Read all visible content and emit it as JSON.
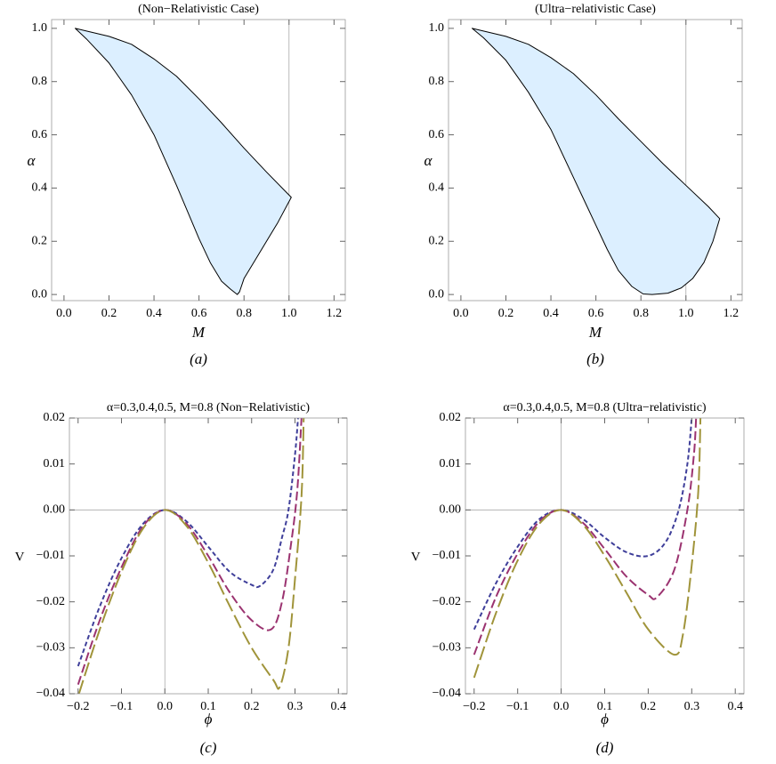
{
  "chart_data": [
    {
      "type": "area",
      "title": "(Non−Relativistic Case)",
      "xlabel": "M",
      "ylabel": "α",
      "panel_label": "(a)",
      "xlim": [
        -0.055,
        1.25
      ],
      "ylim": [
        -0.023,
        1.033
      ],
      "xticks": [
        {
          "value": 0,
          "label": "0.0"
        },
        {
          "value": 0.2,
          "label": "0.2"
        },
        {
          "value": 0.4,
          "label": "0.4"
        },
        {
          "value": 0.6,
          "label": "0.6"
        },
        {
          "value": 0.8,
          "label": "0.8"
        },
        {
          "value": 1,
          "label": "1.0"
        },
        {
          "value": 1.2,
          "label": "1.2"
        }
      ],
      "yticks": [
        {
          "value": 0,
          "label": "0.0"
        },
        {
          "value": 0.2,
          "label": "0.2"
        },
        {
          "value": 0.4,
          "label": "0.4"
        },
        {
          "value": 0.6,
          "label": "0.6"
        },
        {
          "value": 0.8,
          "label": "0.8"
        },
        {
          "value": 1,
          "label": "1.0"
        }
      ],
      "vlines": [
        1
      ],
      "color": "#dcefff",
      "x": [
        0.05,
        0.1,
        0.2,
        0.3,
        0.4,
        0.5,
        0.6,
        0.7,
        0.8,
        0.9,
        1.01,
        0.95,
        0.9,
        0.85,
        0.8,
        0.78,
        0.77,
        0.74,
        0.7,
        0.65,
        0.6,
        0.55,
        0.5,
        0.4,
        0.3,
        0.2,
        0.1
      ],
      "y": [
        1.0,
        0.99,
        0.97,
        0.94,
        0.885,
        0.82,
        0.735,
        0.645,
        0.55,
        0.46,
        0.365,
        0.27,
        0.2,
        0.13,
        0.06,
        0.01,
        0.0,
        0.02,
        0.05,
        0.12,
        0.21,
        0.31,
        0.41,
        0.6,
        0.75,
        0.87,
        0.96
      ]
    },
    {
      "type": "area",
      "title": "(Ultra−relativistic Case)",
      "xlabel": "M",
      "ylabel": "α",
      "panel_label": "(b)",
      "xlim": [
        -0.055,
        1.25
      ],
      "ylim": [
        -0.023,
        1.033
      ],
      "xticks": [
        {
          "value": 0,
          "label": "0.0"
        },
        {
          "value": 0.2,
          "label": "0.2"
        },
        {
          "value": 0.4,
          "label": "0.4"
        },
        {
          "value": 0.6,
          "label": "0.6"
        },
        {
          "value": 0.8,
          "label": "0.8"
        },
        {
          "value": 1,
          "label": "1.0"
        },
        {
          "value": 1.2,
          "label": "1.2"
        }
      ],
      "yticks": [
        {
          "value": 0,
          "label": "0.0"
        },
        {
          "value": 0.2,
          "label": "0.2"
        },
        {
          "value": 0.4,
          "label": "0.4"
        },
        {
          "value": 0.6,
          "label": "0.6"
        },
        {
          "value": 0.8,
          "label": "0.8"
        },
        {
          "value": 1,
          "label": "1.0"
        }
      ],
      "vlines": [
        1
      ],
      "color": "#dcefff",
      "x": [
        0.05,
        0.1,
        0.2,
        0.3,
        0.4,
        0.5,
        0.6,
        0.7,
        0.8,
        0.9,
        1.0,
        1.1,
        1.15,
        1.12,
        1.08,
        1.03,
        0.98,
        0.92,
        0.85,
        0.81,
        0.76,
        0.7,
        0.65,
        0.6,
        0.55,
        0.5,
        0.4,
        0.3,
        0.2,
        0.1
      ],
      "y": [
        1.0,
        0.99,
        0.97,
        0.94,
        0.89,
        0.83,
        0.75,
        0.66,
        0.575,
        0.49,
        0.41,
        0.33,
        0.285,
        0.2,
        0.12,
        0.06,
        0.025,
        0.005,
        0.0,
        0.002,
        0.03,
        0.09,
        0.17,
        0.26,
        0.35,
        0.44,
        0.62,
        0.76,
        0.88,
        0.965
      ]
    },
    {
      "type": "line",
      "title": "α=0.3,0.4,0.5, M=0.8 (Non−Relativistic)",
      "xlabel": "ϕ",
      "ylabel": "V",
      "panel_label": "(c)",
      "xlim": [
        -0.22,
        0.42
      ],
      "ylim": [
        -0.04,
        0.02
      ],
      "xticks": [
        {
          "value": -0.2,
          "label": "−0.2"
        },
        {
          "value": -0.1,
          "label": "−0.1"
        },
        {
          "value": 0,
          "label": "0.0"
        },
        {
          "value": 0.1,
          "label": "0.1"
        },
        {
          "value": 0.2,
          "label": "0.2"
        },
        {
          "value": 0.3,
          "label": "0.3"
        },
        {
          "value": 0.4,
          "label": "0.4"
        }
      ],
      "yticks": [
        {
          "value": -0.04,
          "label": "−0.04"
        },
        {
          "value": -0.03,
          "label": "−0.03"
        },
        {
          "value": -0.02,
          "label": "−0.02"
        },
        {
          "value": -0.01,
          "label": "−0.01"
        },
        {
          "value": 0,
          "label": "0.00"
        },
        {
          "value": 0.01,
          "label": "0.01"
        },
        {
          "value": 0.02,
          "label": "0.02"
        }
      ],
      "vlines": [
        0
      ],
      "hlines": [
        0
      ],
      "series": [
        {
          "color": "#3f3f9a",
          "dash": "5,3",
          "x": [
            -0.2,
            -0.15,
            -0.1,
            -0.05,
            0,
            0.05,
            0.1,
            0.15,
            0.2,
            0.22,
            0.25,
            0.27,
            0.285,
            0.3,
            0.307
          ],
          "values": [
            -0.034,
            -0.021,
            -0.0105,
            -0.003,
            0,
            -0.0025,
            -0.008,
            -0.0135,
            -0.0163,
            -0.0165,
            -0.013,
            -0.006,
            0.0,
            0.012,
            0.02
          ]
        },
        {
          "color": "#9b3370",
          "dash": "10,4",
          "x": [
            -0.2,
            -0.15,
            -0.1,
            -0.05,
            0,
            0.05,
            0.1,
            0.15,
            0.2,
            0.245,
            0.27,
            0.29,
            0.305,
            0.315
          ],
          "values": [
            -0.038,
            -0.024,
            -0.0125,
            -0.0035,
            0,
            -0.003,
            -0.01,
            -0.018,
            -0.024,
            -0.026,
            -0.02,
            -0.008,
            0.004,
            0.02
          ]
        },
        {
          "color": "#a0943a",
          "dash": "16,5",
          "x": [
            -0.198,
            -0.15,
            -0.1,
            -0.05,
            0,
            0.05,
            0.1,
            0.15,
            0.2,
            0.25,
            0.265,
            0.285,
            0.3,
            0.315,
            0.32
          ],
          "values": [
            -0.04,
            -0.026,
            -0.0135,
            -0.004,
            0,
            -0.0035,
            -0.0115,
            -0.021,
            -0.03,
            -0.037,
            -0.0385,
            -0.03,
            -0.015,
            0.003,
            0.02
          ]
        }
      ]
    },
    {
      "type": "line",
      "title": "α=0.3,0.4,0.5, M=0.8 (Ultra−relativistic)",
      "xlabel": "ϕ",
      "ylabel": "V",
      "panel_label": "(d)",
      "xlim": [
        -0.22,
        0.42
      ],
      "ylim": [
        -0.04,
        0.02
      ],
      "xticks": [
        {
          "value": -0.2,
          "label": "−0.2"
        },
        {
          "value": -0.1,
          "label": "−0.1"
        },
        {
          "value": 0,
          "label": "0.0"
        },
        {
          "value": 0.1,
          "label": "0.1"
        },
        {
          "value": 0.2,
          "label": "0.2"
        },
        {
          "value": 0.3,
          "label": "0.3"
        },
        {
          "value": 0.4,
          "label": "0.4"
        }
      ],
      "yticks": [
        {
          "value": -0.04,
          "label": "−0.04"
        },
        {
          "value": -0.03,
          "label": "−0.03"
        },
        {
          "value": -0.02,
          "label": "−0.02"
        },
        {
          "value": -0.01,
          "label": "−0.01"
        },
        {
          "value": 0,
          "label": "0.00"
        },
        {
          "value": 0.01,
          "label": "0.01"
        },
        {
          "value": 0.02,
          "label": "0.02"
        }
      ],
      "vlines": [
        0
      ],
      "hlines": [
        0
      ],
      "series": [
        {
          "color": "#3f3f9a",
          "dash": "5,3",
          "x": [
            -0.2,
            -0.15,
            -0.1,
            -0.05,
            0,
            0.05,
            0.1,
            0.15,
            0.2,
            0.24,
            0.27,
            0.29,
            0.3
          ],
          "values": [
            -0.026,
            -0.016,
            -0.008,
            -0.002,
            0,
            -0.002,
            -0.006,
            -0.0092,
            -0.01,
            -0.007,
            0.0,
            0.01,
            0.02
          ]
        },
        {
          "color": "#9b3370",
          "dash": "10,4",
          "x": [
            -0.2,
            -0.15,
            -0.1,
            -0.05,
            0,
            0.05,
            0.1,
            0.15,
            0.2,
            0.22,
            0.26,
            0.29,
            0.305,
            0.31
          ],
          "values": [
            -0.0315,
            -0.019,
            -0.0095,
            -0.0025,
            0,
            -0.0028,
            -0.0085,
            -0.0145,
            -0.0185,
            -0.019,
            -0.013,
            0.0,
            0.012,
            0.02
          ]
        },
        {
          "color": "#a0943a",
          "dash": "16,5",
          "x": [
            -0.2,
            -0.15,
            -0.1,
            -0.05,
            0,
            0.05,
            0.1,
            0.15,
            0.2,
            0.26,
            0.28,
            0.3,
            0.315,
            0.32
          ],
          "values": [
            -0.0365,
            -0.0225,
            -0.011,
            -0.003,
            0,
            -0.0032,
            -0.01,
            -0.018,
            -0.026,
            -0.0315,
            -0.027,
            -0.012,
            0.004,
            0.02
          ]
        }
      ]
    }
  ]
}
